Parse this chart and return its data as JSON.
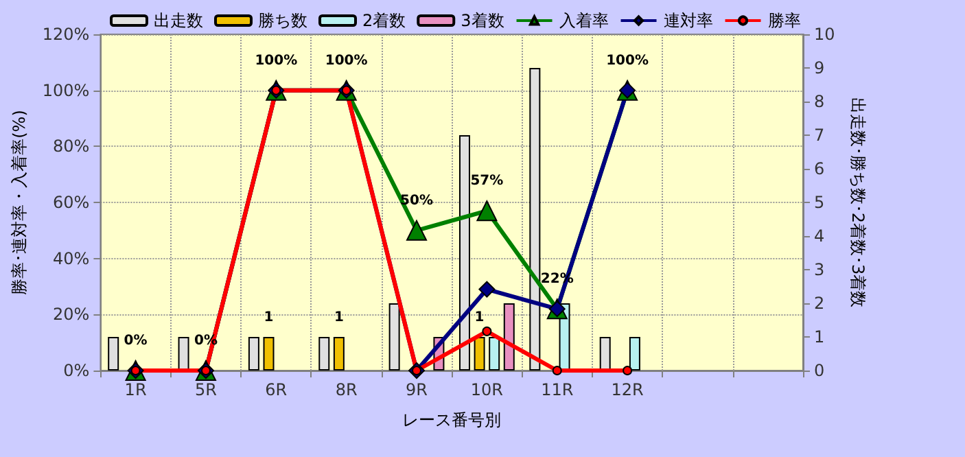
{
  "chart_data": {
    "type": "bar",
    "xlabel": "レース番号別",
    "ylabel": "勝率･連対率・入着率(%)",
    "y2label": "出走数･勝ち数･2着数･3着数",
    "categories": [
      "1R",
      "5R",
      "6R",
      "8R",
      "9R",
      "10R",
      "11R",
      "12R",
      null,
      null
    ],
    "series": [
      {
        "name": "出走数",
        "axis": "y2",
        "color": "#e0e0e0",
        "values": [
          1,
          1,
          1,
          1,
          2,
          7,
          9,
          1,
          null,
          null
        ]
      },
      {
        "name": "勝ち数",
        "axis": "y2",
        "color": "#f0c000",
        "values": [
          null,
          null,
          1,
          1,
          null,
          1,
          null,
          null,
          null,
          null
        ],
        "value_labels": [
          null,
          null,
          "1",
          "1",
          null,
          "1",
          null,
          null,
          null,
          null
        ]
      },
      {
        "name": "2着数",
        "axis": "y2",
        "color": "#b8f0f0",
        "values": [
          null,
          null,
          null,
          null,
          null,
          1,
          2,
          1,
          null,
          null
        ]
      },
      {
        "name": "3着数",
        "axis": "y2",
        "color": "#e890c0",
        "values": [
          null,
          null,
          null,
          null,
          1,
          2,
          null,
          null,
          null,
          null
        ]
      },
      {
        "name": "入着率",
        "type": "line",
        "color": "#008000",
        "marker": "triangle",
        "values": [
          0,
          0,
          100,
          100,
          50,
          57,
          22,
          100,
          null,
          null
        ],
        "value_labels": [
          "0%",
          "0%",
          "100%",
          "100%",
          "50%",
          "57%",
          "22%",
          "100%",
          null,
          null
        ]
      },
      {
        "name": "連対率",
        "type": "line",
        "color": "#000080",
        "marker": "diamond",
        "values": [
          0,
          0,
          100,
          100,
          0,
          29,
          22,
          100,
          null,
          null
        ]
      },
      {
        "name": "勝率",
        "type": "line",
        "color": "#ff0000",
        "marker": "circle",
        "values": [
          0,
          0,
          100,
          100,
          0,
          14,
          0,
          0,
          null,
          null
        ]
      }
    ],
    "ylim": [
      0,
      120
    ],
    "yticks": [
      {
        "value": 0,
        "label": "0%"
      },
      {
        "value": 20,
        "label": "20%"
      },
      {
        "value": 40,
        "label": "40%"
      },
      {
        "value": 60,
        "label": "60%"
      },
      {
        "value": 80,
        "label": "80%"
      },
      {
        "value": 100,
        "label": "100%"
      },
      {
        "value": 120,
        "label": "120%"
      }
    ],
    "y2lim": [
      0,
      10
    ],
    "y2ticks": [
      0,
      1,
      2,
      3,
      4,
      5,
      6,
      7,
      8,
      9,
      10
    ],
    "grid": true,
    "legend": "top",
    "line_style": "solid"
  }
}
